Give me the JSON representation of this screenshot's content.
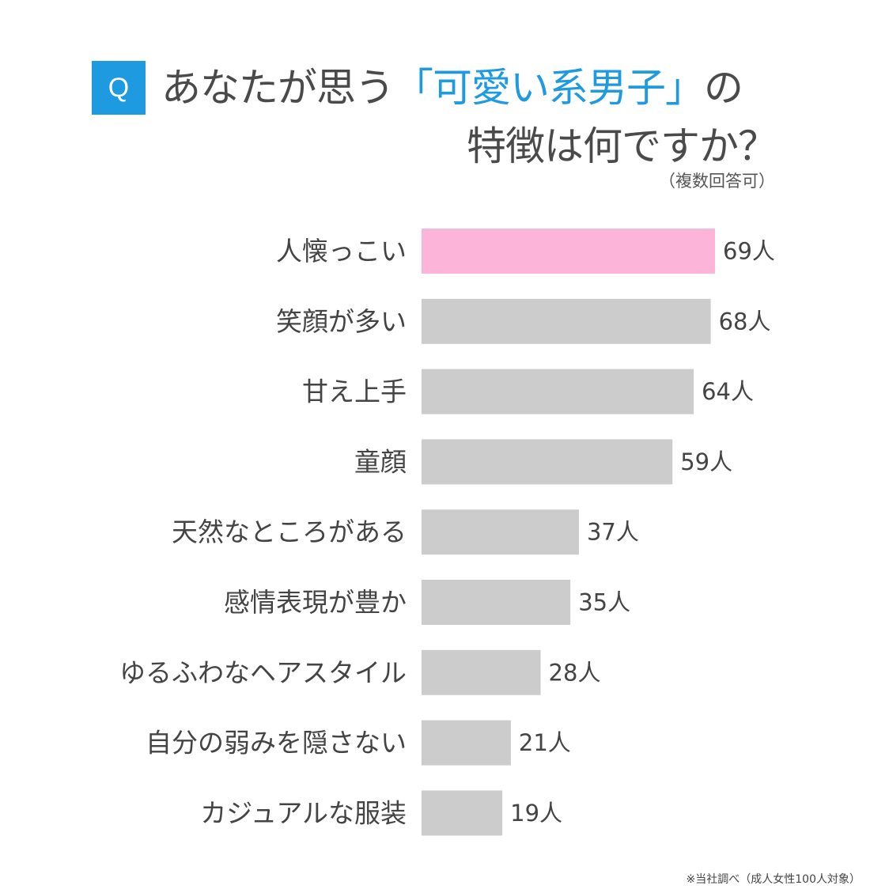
{
  "header": {
    "badge": "Q",
    "title_prefix": "あなたが思う",
    "title_highlight": "「可愛い系男子」",
    "title_suffix": "の",
    "title_line2": "特徴は何ですか？",
    "note": "（複数回答可）"
  },
  "footnote": "※当社調べ（成人女性100人対象）",
  "colors": {
    "accent": "#1e9be0",
    "highlight_bar": "#fdb4d9",
    "bar": "#cccccc",
    "text": "#444444"
  },
  "chart_data": {
    "type": "bar",
    "orientation": "horizontal",
    "unit": "人",
    "categories": [
      "人懐っこい",
      "笑顔が多い",
      "甘え上手",
      "童顔",
      "天然なところがある",
      "感情表現が豊か",
      "ゆるふわなヘアスタイル",
      "自分の弱みを隠さない",
      "カジュアルな服装"
    ],
    "values": [
      69,
      68,
      64,
      59,
      37,
      35,
      28,
      21,
      19
    ],
    "highlight_index": 0
  }
}
